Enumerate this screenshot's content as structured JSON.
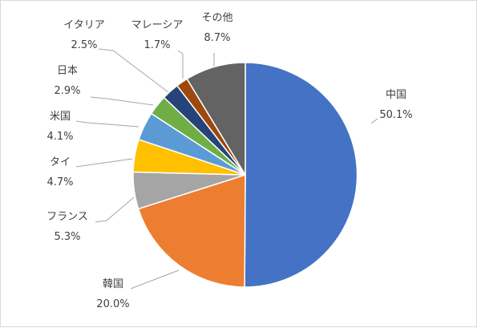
{
  "chart_data": {
    "type": "pie",
    "title": "",
    "start_angle_deg": 0,
    "direction": "clockwise",
    "legend": "none",
    "slices": [
      {
        "name": "中国",
        "label": "中国",
        "value": 50.1,
        "value_label": "50.1%",
        "color": "#4472C4"
      },
      {
        "name": "韓国",
        "label": "韓国",
        "value": 20.0,
        "value_label": "20.0%",
        "color": "#ED7D31"
      },
      {
        "name": "フランス",
        "label": "フランス",
        "value": 5.3,
        "value_label": "5.3%",
        "color": "#A5A5A5"
      },
      {
        "name": "タイ",
        "label": "タイ",
        "value": 4.7,
        "value_label": "4.7%",
        "color": "#FFC000"
      },
      {
        "name": "米国",
        "label": "米国",
        "value": 4.1,
        "value_label": "4.1%",
        "color": "#5B9BD5"
      },
      {
        "name": "日本",
        "label": "日本",
        "value": 2.9,
        "value_label": "2.9%",
        "color": "#70AD47"
      },
      {
        "name": "イタリア",
        "label": "イタリア",
        "value": 2.5,
        "value_label": "2.5%",
        "color": "#264478"
      },
      {
        "name": "マレーシア",
        "label": "マレーシア",
        "value": 1.7,
        "value_label": "1.7%",
        "color": "#9E480E"
      },
      {
        "name": "その他",
        "label": "その他",
        "value": 8.7,
        "value_label": "8.7%",
        "color": "#636363"
      }
    ]
  }
}
